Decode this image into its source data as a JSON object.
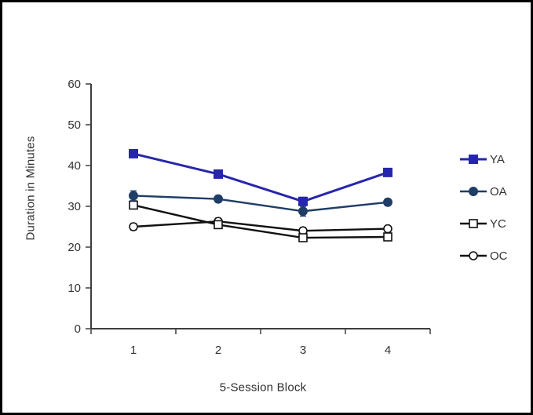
{
  "window": {
    "background": "#ffffff",
    "border_color": "#000000"
  },
  "chart_data": {
    "type": "line",
    "title": "",
    "xlabel": "5-Session Block",
    "ylabel": "Duration in Minutes",
    "categories": [
      "1",
      "2",
      "3",
      "4"
    ],
    "ylim": [
      0,
      60
    ],
    "yticks": [
      0,
      10,
      20,
      30,
      40,
      50,
      60
    ],
    "grid": false,
    "legend_position": "right",
    "error_bars": true,
    "axis_color": "#3f3f3f",
    "text_color": "#333333",
    "series": [
      {
        "name": "YA",
        "marker": "filled-square",
        "color": "#2626ac",
        "values": [
          42.9,
          37.9,
          31.2,
          38.3
        ],
        "errors": [
          0.9,
          0.6,
          1.0,
          0.8
        ]
      },
      {
        "name": "OA",
        "marker": "filled-circle",
        "color": "#1f3d66",
        "values": [
          32.6,
          31.8,
          28.8,
          31.0
        ],
        "errors": [
          1.2,
          0.8,
          1.2,
          0.8
        ]
      },
      {
        "name": "YC",
        "marker": "open-square",
        "color": "#111111",
        "values": [
          30.3,
          25.5,
          22.3,
          22.5
        ],
        "errors": [
          0.9,
          0.8,
          0.8,
          0.6
        ]
      },
      {
        "name": "OC",
        "marker": "open-circle",
        "color": "#111111",
        "values": [
          25.0,
          26.3,
          24.0,
          24.5
        ],
        "errors": [
          0.8,
          0.8,
          0.8,
          0.7
        ]
      }
    ]
  }
}
